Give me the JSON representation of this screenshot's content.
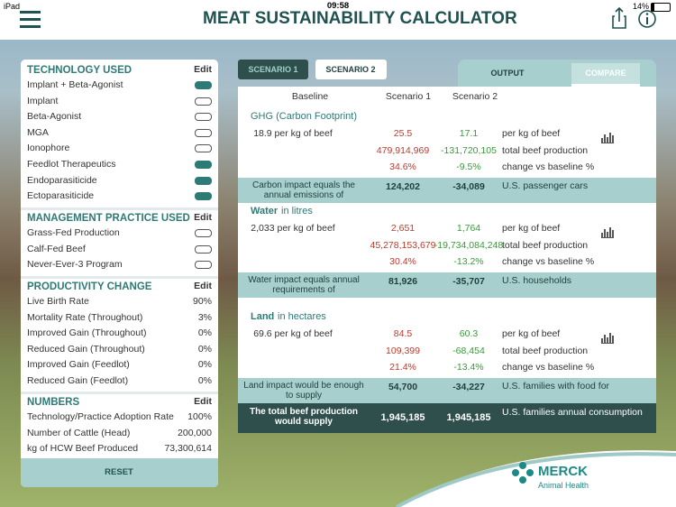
{
  "status": {
    "carrier": "iPad",
    "time": "09:58",
    "battery": "14%"
  },
  "header": {
    "title": "MEAT SUSTAINABILITY CALCULATOR"
  },
  "sidebar": {
    "sections": [
      {
        "title": "TECHNOLOGY USED",
        "edit": "Edit",
        "items": [
          {
            "label": "Implant + Beta-Agonist",
            "on": true
          },
          {
            "label": "Implant",
            "on": false
          },
          {
            "label": "Beta-Agonist",
            "on": false
          },
          {
            "label": "MGA",
            "on": false
          },
          {
            "label": "Ionophore",
            "on": false
          },
          {
            "label": "Feedlot Therapeutics",
            "on": true
          },
          {
            "label": "Endoparasiticide",
            "on": true
          },
          {
            "label": "Ectoparasiticide",
            "on": true
          }
        ]
      },
      {
        "title": "MANAGEMENT PRACTICE USED",
        "edit": "Edit",
        "items": [
          {
            "label": "Grass-Fed Production",
            "on": false
          },
          {
            "label": "Calf-Fed Beef",
            "on": false
          },
          {
            "label": "Never-Ever-3 Program",
            "on": false
          }
        ]
      },
      {
        "title": "PRODUCTIVITY CHANGE",
        "edit": "Edit",
        "items": [
          {
            "label": "Live Birth Rate",
            "value": "90%"
          },
          {
            "label": "Mortality Rate (Throughout)",
            "value": "3%"
          },
          {
            "label": "Improved Gain (Throughout)",
            "value": "0%"
          },
          {
            "label": "Reduced Gain (Throughout)",
            "value": "0%"
          },
          {
            "label": "Improved Gain (Feedlot)",
            "value": "0%"
          },
          {
            "label": "Reduced Gain (Feedlot)",
            "value": "0%"
          }
        ]
      },
      {
        "title": "NUMBERS",
        "edit": "Edit",
        "items": [
          {
            "label": "Technology/Practice Adoption Rate",
            "value": "100%"
          },
          {
            "label": "Number of Cattle (Head)",
            "value": "200,000"
          },
          {
            "label": "kg of HCW Beef Produced",
            "value": "73,300,614"
          }
        ]
      }
    ],
    "reset": "RESET"
  },
  "tabs": {
    "scenarios": [
      "SCENARIO 1",
      "SCENARIO 2"
    ],
    "views": [
      "OUTPUT",
      "COMPARE"
    ]
  },
  "table": {
    "columns": [
      "Baseline",
      "Scenario 1",
      "Scenario 2"
    ],
    "sections": [
      {
        "title": "GHG (Carbon Footprint)",
        "rows": [
          {
            "baseline": "18.9 per kg of beef",
            "s1": "25.5",
            "s2": "17.1",
            "unit": "per kg of beef"
          },
          {
            "s1": "479,914,969",
            "s2": "-131,720,105",
            "unit": "total beef production"
          },
          {
            "s1": "34.6%",
            "s2": "-9.5%",
            "unit": "change vs baseline %"
          }
        ],
        "summary": {
          "label": "Carbon impact equals the annual emissions of",
          "s1": "124,202",
          "s2": "-34,089",
          "unit": "U.S. passenger cars"
        }
      },
      {
        "title": "Water",
        "measure": "in litres",
        "rows": [
          {
            "baseline": "2,033 per kg of beef",
            "s1": "2,651",
            "s2": "1,764",
            "unit": "per kg of beef"
          },
          {
            "s1": "45,278,153,679",
            "s2": "-19,734,084,248",
            "unit": "total beef production"
          },
          {
            "s1": "30.4%",
            "s2": "-13.2%",
            "unit": "change vs baseline %"
          }
        ],
        "summary": {
          "label": "Water impact equals annual requirements of",
          "s1": "81,926",
          "s2": "-35,707",
          "unit": "U.S. households"
        }
      },
      {
        "title": "Land",
        "measure": "in hectares",
        "rows": [
          {
            "baseline": "69.6 per kg of beef",
            "s1": "84.5",
            "s2": "60.3",
            "unit": "per kg of beef"
          },
          {
            "s1": "109,399",
            "s2": "-68,454",
            "unit": "total beef production"
          },
          {
            "s1": "21.4%",
            "s2": "-13.4%",
            "unit": "change vs baseline %"
          }
        ],
        "summary": {
          "label": "Land impact would be enough to supply",
          "s1": "54,700",
          "s2": "-34,227",
          "unit": "U.S. families with food for"
        }
      }
    ],
    "total": {
      "label": "The total beef production would supply",
      "s1": "1,945,185",
      "s2": "1,945,185",
      "unit": "U.S. families annual consumption"
    }
  },
  "logo": {
    "name": "MERCK",
    "sub": "Animal Health"
  }
}
